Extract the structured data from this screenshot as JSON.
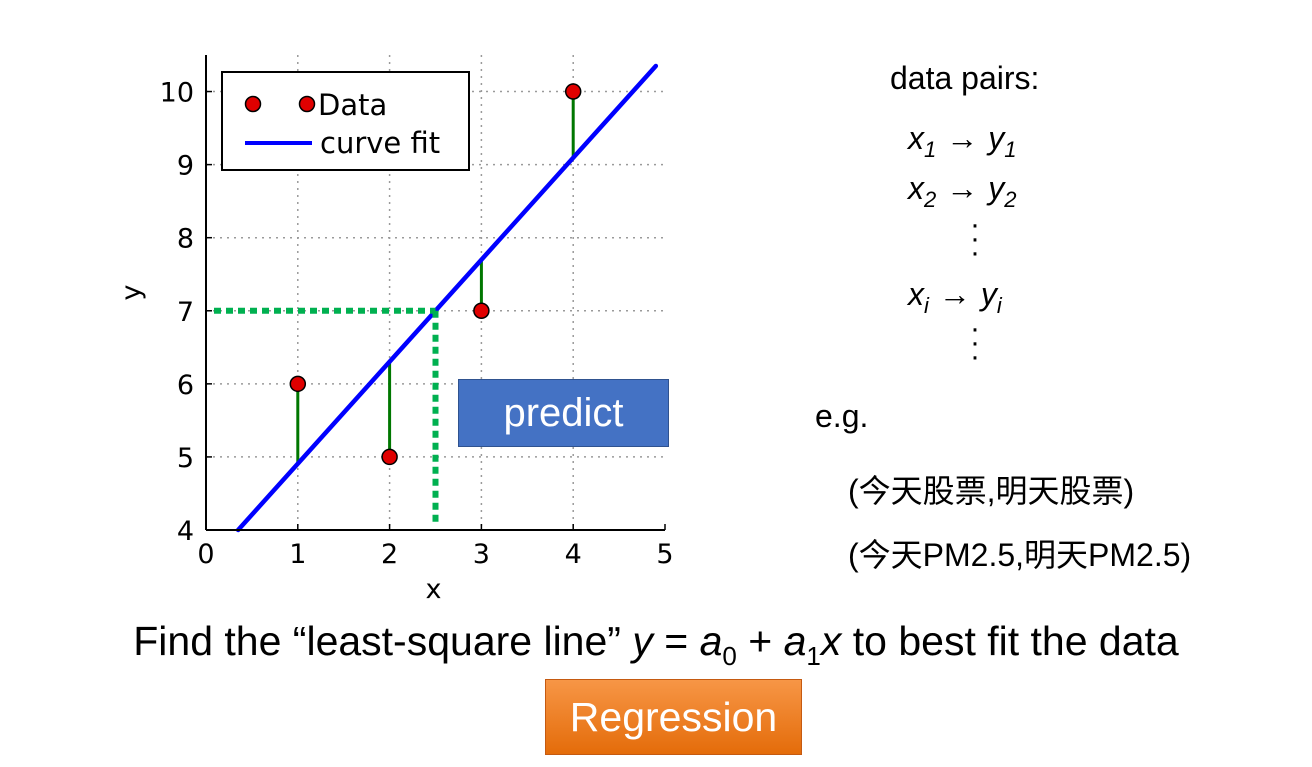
{
  "chart_data": {
    "type": "scatter",
    "xlabel": "x",
    "ylabel": "y",
    "xlim": [
      0,
      5
    ],
    "ylim": [
      4,
      10.5
    ],
    "x_ticks": [
      "0",
      "1",
      "2",
      "3",
      "4",
      "5"
    ],
    "y_ticks": [
      "4",
      "5",
      "6",
      "7",
      "8",
      "9",
      "10"
    ],
    "grid": true,
    "legend_position": "top-left",
    "series": [
      {
        "name": "Data",
        "kind": "points",
        "color": "#e00000",
        "x": [
          1,
          2,
          3,
          4
        ],
        "y": [
          6,
          5,
          7,
          10
        ]
      },
      {
        "name": "curve fit",
        "kind": "line",
        "color": "#0000ff",
        "x": [
          0.35,
          4.9
        ],
        "y": [
          4.0,
          10.35
        ]
      }
    ],
    "residual_color": "#007700",
    "prediction": {
      "x": 2.5,
      "y": 7,
      "color": "#00b050"
    }
  },
  "predict_label": "predict",
  "data_pairs": {
    "title": "data pairs:",
    "rows": [
      {
        "x": "x",
        "xs": "1",
        "arrow": "→",
        "y": "y",
        "ys": "1"
      },
      {
        "x": "x",
        "xs": "2",
        "arrow": "→",
        "y": "y",
        "ys": "2"
      },
      {
        "x": "x",
        "xs": "i",
        "arrow": "→",
        "y": "y",
        "ys": "i"
      }
    ]
  },
  "example": {
    "label": "e.g.",
    "lines": [
      "(今天股票,明天股票)",
      "(今天PM2.5,明天PM2.5)"
    ]
  },
  "formula": {
    "before": "Find the “least-square line” ",
    "y": "y",
    "eq": " = ",
    "a0": "a",
    "a0_sub": "0",
    "plus": " + ",
    "a1": "a",
    "a1_sub": "1",
    "x": "x",
    "after": " to best fit the data"
  },
  "regression_label": "Regression"
}
